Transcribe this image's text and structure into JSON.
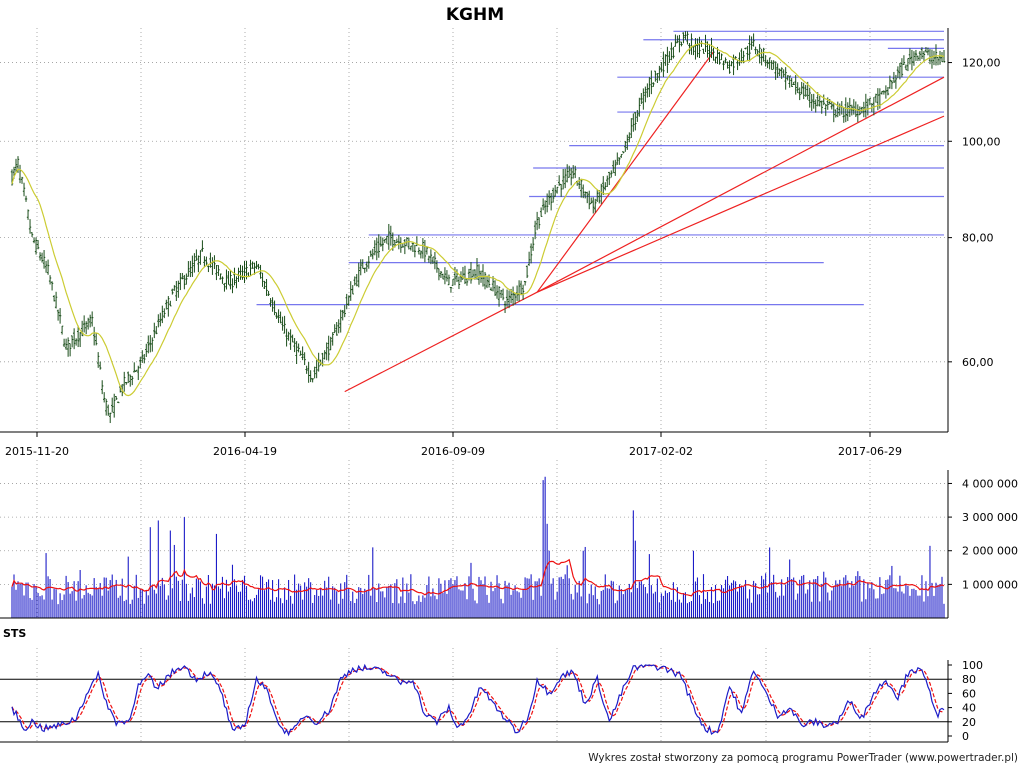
{
  "title": "KGHM",
  "footer": "Wykres został stworzony za pomocą programu PowerTrader (www.powertrader.pl)",
  "colors": {
    "candles": "#1a4d1a",
    "ma_price": "#cccc33",
    "volume_bars": "#1c1cc8",
    "ma_volume": "#ee1111",
    "support_lines": "#7777ee",
    "trend_lines": "#ee2222",
    "sts_k": "#1c1cc8",
    "sts_d": "#ee1111"
  },
  "chart_data": [
    {
      "type": "candlestick",
      "name": "price",
      "title": "KGHM",
      "x_tick_labels": [
        "2015-11-20",
        "2016-04-19",
        "2016-09-09",
        "2017-02-02",
        "2017-06-29"
      ],
      "y_tick_labels": [
        "60,00",
        "80,00",
        "100,00",
        "120,00"
      ],
      "y_ticks": [
        60,
        80,
        100,
        120
      ],
      "ylim": [
        51,
        130
      ],
      "y_scale": "log",
      "grid": true,
      "price_anchors": [
        [
          0,
          92
        ],
        [
          3,
          95
        ],
        [
          10,
          80
        ],
        [
          18,
          74
        ],
        [
          27,
          62
        ],
        [
          40,
          66
        ],
        [
          46,
          55
        ],
        [
          49,
          53
        ],
        [
          56,
          57
        ],
        [
          65,
          60
        ],
        [
          80,
          70
        ],
        [
          95,
          77
        ],
        [
          108,
          72
        ],
        [
          122,
          75
        ],
        [
          135,
          65
        ],
        [
          150,
          58
        ],
        [
          160,
          63
        ],
        [
          175,
          75
        ],
        [
          188,
          80
        ],
        [
          205,
          78
        ],
        [
          218,
          72
        ],
        [
          232,
          74
        ],
        [
          247,
          69
        ],
        [
          256,
          72
        ],
        [
          262,
          83
        ],
        [
          272,
          90
        ],
        [
          280,
          93
        ],
        [
          290,
          86
        ],
        [
          304,
          96
        ],
        [
          316,
          112
        ],
        [
          328,
          122
        ],
        [
          336,
          128
        ],
        [
          340,
          124
        ],
        [
          348,
          124
        ],
        [
          358,
          119
        ],
        [
          370,
          125
        ],
        [
          385,
          116
        ],
        [
          400,
          110
        ],
        [
          412,
          107
        ],
        [
          425,
          108
        ],
        [
          435,
          111
        ],
        [
          442,
          117
        ],
        [
          452,
          123
        ],
        [
          462,
          121
        ]
      ],
      "moving_average_period": 14,
      "horizontal_levels": [
        {
          "y": 129,
          "from": 330,
          "to": 465
        },
        {
          "y": 126.5,
          "from": 315,
          "to": 465
        },
        {
          "y": 124,
          "from": 437,
          "to": 465
        },
        {
          "y": 116,
          "from": 302,
          "to": 465
        },
        {
          "y": 107,
          "from": 302,
          "to": 465
        },
        {
          "y": 99,
          "from": 278,
          "to": 465
        },
        {
          "y": 94,
          "from": 260,
          "to": 465
        },
        {
          "y": 88,
          "from": 258,
          "to": 465
        },
        {
          "y": 80.5,
          "from": 178,
          "to": 465
        },
        {
          "y": 75.5,
          "from": 168,
          "to": 405
        },
        {
          "y": 68.5,
          "from": 122,
          "to": 425
        }
      ],
      "trend_lines": [
        {
          "from": [
            166,
            56
          ],
          "to": [
            262,
            70.5
          ]
        },
        {
          "from": [
            262,
            70.5
          ],
          "to": [
            350,
            123
          ]
        },
        {
          "from": [
            262,
            70.5
          ],
          "to": [
            465,
            116
          ]
        },
        {
          "from": [
            262,
            70.5
          ],
          "to": [
            465,
            106
          ]
        }
      ]
    },
    {
      "type": "bar",
      "name": "volume",
      "y_tick_labels": [
        "1 000 000",
        "2 000 000",
        "3 000 000",
        "4 000 000"
      ],
      "y_ticks": [
        1000000,
        2000000,
        3000000,
        4000000
      ],
      "ylim": [
        0,
        4400000
      ],
      "base_volume": 900000,
      "spikes": [
        {
          "x": 69,
          "value": 2700000
        },
        {
          "x": 73,
          "value": 2900000
        },
        {
          "x": 79,
          "value": 2600000
        },
        {
          "x": 86,
          "value": 3000000
        },
        {
          "x": 102,
          "value": 2500000
        },
        {
          "x": 180,
          "value": 2100000
        },
        {
          "x": 265,
          "value": 4100000
        },
        {
          "x": 266,
          "value": 4200000
        },
        {
          "x": 267,
          "value": 2800000
        },
        {
          "x": 268,
          "value": 2000000
        },
        {
          "x": 310,
          "value": 3200000
        },
        {
          "x": 311,
          "value": 2300000
        },
        {
          "x": 285,
          "value": 2000000
        },
        {
          "x": 318,
          "value": 1900000
        },
        {
          "x": 340,
          "value": 2000000
        }
      ],
      "moving_average_period": 14
    },
    {
      "type": "line",
      "name": "STS",
      "label": "STS",
      "y_tick_labels": [
        "0",
        "20",
        "40",
        "60",
        "80",
        "100"
      ],
      "y_ticks": [
        0,
        20,
        40,
        60,
        80,
        100
      ],
      "ylim": [
        0,
        100
      ],
      "reference_levels": [
        20,
        80
      ],
      "k_anchors": [
        [
          0,
          40
        ],
        [
          6,
          10
        ],
        [
          10,
          20
        ],
        [
          16,
          10
        ],
        [
          24,
          15
        ],
        [
          32,
          25
        ],
        [
          38,
          65
        ],
        [
          43,
          85
        ],
        [
          48,
          40
        ],
        [
          52,
          20
        ],
        [
          58,
          20
        ],
        [
          63,
          70
        ],
        [
          68,
          85
        ],
        [
          72,
          65
        ],
        [
          78,
          85
        ],
        [
          85,
          100
        ],
        [
          92,
          80
        ],
        [
          98,
          90
        ],
        [
          104,
          65
        ],
        [
          110,
          5
        ],
        [
          116,
          15
        ],
        [
          122,
          80
        ],
        [
          128,
          60
        ],
        [
          134,
          10
        ],
        [
          140,
          5
        ],
        [
          146,
          30
        ],
        [
          152,
          20
        ],
        [
          158,
          35
        ],
        [
          164,
          80
        ],
        [
          170,
          95
        ],
        [
          178,
          95
        ],
        [
          186,
          90
        ],
        [
          194,
          75
        ],
        [
          200,
          80
        ],
        [
          206,
          30
        ],
        [
          212,
          20
        ],
        [
          218,
          40
        ],
        [
          222,
          10
        ],
        [
          228,
          30
        ],
        [
          234,
          70
        ],
        [
          240,
          45
        ],
        [
          246,
          25
        ],
        [
          252,
          5
        ],
        [
          258,
          30
        ],
        [
          262,
          80
        ],
        [
          268,
          60
        ],
        [
          274,
          85
        ],
        [
          280,
          90
        ],
        [
          286,
          45
        ],
        [
          292,
          80
        ],
        [
          298,
          20
        ],
        [
          304,
          60
        ],
        [
          310,
          95
        ],
        [
          318,
          100
        ],
        [
          326,
          95
        ],
        [
          334,
          85
        ],
        [
          340,
          40
        ],
        [
          346,
          10
        ],
        [
          352,
          5
        ],
        [
          358,
          70
        ],
        [
          364,
          30
        ],
        [
          370,
          95
        ],
        [
          376,
          60
        ],
        [
          382,
          30
        ],
        [
          388,
          40
        ],
        [
          394,
          15
        ],
        [
          400,
          20
        ],
        [
          406,
          15
        ],
        [
          412,
          20
        ],
        [
          418,
          50
        ],
        [
          424,
          25
        ],
        [
          430,
          60
        ],
        [
          436,
          80
        ],
        [
          442,
          55
        ],
        [
          448,
          95
        ],
        [
          454,
          90
        ],
        [
          458,
          60
        ],
        [
          462,
          30
        ],
        [
          465,
          40
        ]
      ],
      "d_period": 3
    }
  ]
}
